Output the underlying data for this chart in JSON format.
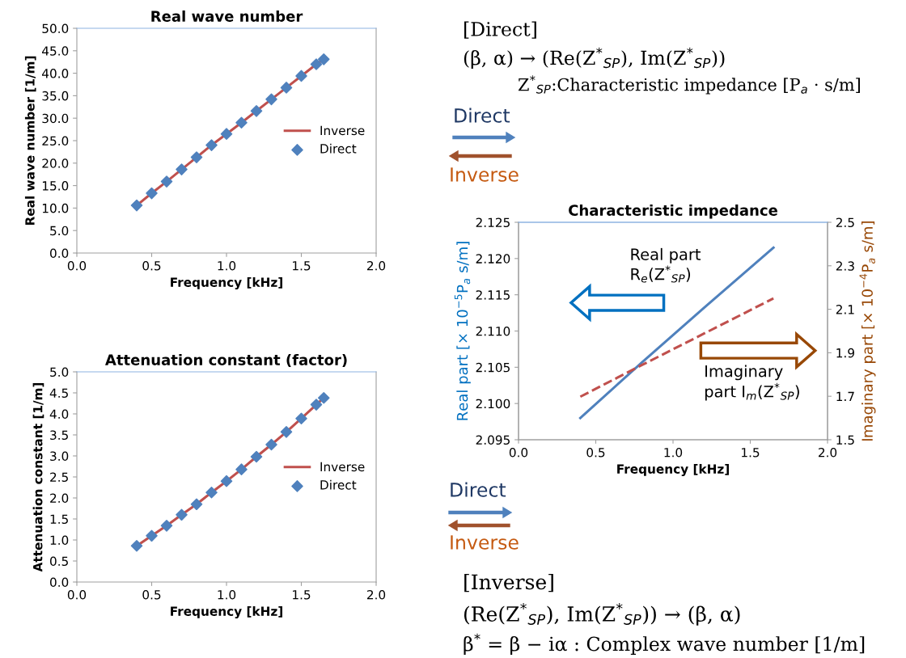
{
  "chart_data": [
    {
      "type": "line",
      "title": "Real wave number",
      "xlabel": "Frequency [kHz]",
      "ylabel": "Real wave number [1/m]",
      "xlim": [
        0.0,
        2.0
      ],
      "xticks": [
        {
          "value": 0,
          "label": "0.0"
        },
        {
          "value": 0.5,
          "label": "0.5"
        },
        {
          "value": 1,
          "label": "1.0"
        },
        {
          "value": 1.5,
          "label": "1.5"
        },
        {
          "value": 2,
          "label": "2.0"
        }
      ],
      "ylim": [
        0.0,
        50.0
      ],
      "yticks": [
        {
          "value": 0,
          "label": "0.0"
        },
        {
          "value": 5,
          "label": "5.0"
        },
        {
          "value": 10,
          "label": "10.0"
        },
        {
          "value": 15,
          "label": "15.0"
        },
        {
          "value": 20,
          "label": "20.0"
        },
        {
          "value": 25,
          "label": "25.0"
        },
        {
          "value": 30,
          "label": "30.0"
        },
        {
          "value": 35,
          "label": "35.0"
        },
        {
          "value": 40,
          "label": "40.0"
        },
        {
          "value": 45,
          "label": "45.0"
        },
        {
          "value": 50,
          "label": "50.0"
        }
      ],
      "legend": "center right",
      "x": [
        0.4,
        0.5,
        0.6,
        0.7,
        0.8,
        0.9,
        1.0,
        1.1,
        1.2,
        1.3,
        1.4,
        1.5,
        1.6,
        1.65
      ],
      "series": [
        {
          "name": "Inverse",
          "type": "line",
          "color": "#c0504d",
          "values": [
            10.6,
            13.3,
            15.9,
            18.6,
            21.3,
            24.0,
            26.5,
            29.0,
            31.6,
            34.2,
            36.8,
            39.4,
            42.0,
            43.1
          ]
        },
        {
          "name": "Direct",
          "type": "scatter",
          "marker": "diamond",
          "color": "#4f81bd",
          "values": [
            10.6,
            13.3,
            15.9,
            18.6,
            21.3,
            24.0,
            26.5,
            29.0,
            31.6,
            34.2,
            36.8,
            39.4,
            42.0,
            43.1
          ]
        }
      ]
    },
    {
      "type": "line",
      "title": "Attenuation constant (factor)",
      "xlabel": "Frequency [kHz]",
      "ylabel": "Attenuation constant [1/m]",
      "xlim": [
        0.0,
        2.0
      ],
      "xticks": [
        {
          "value": 0,
          "label": "0.0"
        },
        {
          "value": 0.5,
          "label": "0.5"
        },
        {
          "value": 1,
          "label": "1.0"
        },
        {
          "value": 1.5,
          "label": "1.5"
        },
        {
          "value": 2,
          "label": "2.0"
        }
      ],
      "ylim": [
        0.0,
        5.0
      ],
      "yticks": [
        {
          "value": 0,
          "label": "0.0"
        },
        0.5,
        {
          "value": 1,
          "label": "1.0"
        },
        1.5,
        {
          "value": 2,
          "label": "2.0"
        },
        2.5,
        {
          "value": 3,
          "label": "3.0"
        },
        3.5,
        {
          "value": 4,
          "label": "4.0"
        },
        4.5,
        {
          "value": 5,
          "label": "5.0"
        }
      ],
      "legend": "center right",
      "x": [
        0.4,
        0.5,
        0.6,
        0.7,
        0.8,
        0.9,
        1.0,
        1.1,
        1.2,
        1.3,
        1.4,
        1.5,
        1.6,
        1.65
      ],
      "series": [
        {
          "name": "Inverse",
          "type": "line",
          "color": "#c0504d",
          "values": [
            0.86,
            1.1,
            1.34,
            1.6,
            1.85,
            2.13,
            2.4,
            2.68,
            2.98,
            3.27,
            3.57,
            3.89,
            4.22,
            4.38
          ]
        },
        {
          "name": "Direct",
          "type": "scatter",
          "marker": "diamond",
          "color": "#4f81bd",
          "values": [
            0.86,
            1.1,
            1.34,
            1.6,
            1.85,
            2.13,
            2.4,
            2.68,
            2.98,
            3.27,
            3.57,
            3.89,
            4.22,
            4.38
          ]
        }
      ]
    },
    {
      "type": "line",
      "title": "Characteristic impedance",
      "xlabel": "Frequency [kHz]",
      "ylabel": "Real part [× 10$^{−5}$P$_{a}$ s/m]",
      "y2label": "Imaginary part [× 10$^{−4}$P$_{a}$ s/m]",
      "xlim": [
        0.0,
        2.0
      ],
      "xticks": [
        {
          "value": 0,
          "label": "0.0"
        },
        {
          "value": 0.5,
          "label": "0.5"
        },
        {
          "value": 1,
          "label": "1.0"
        },
        {
          "value": 1.5,
          "label": "1.5"
        },
        {
          "value": 2,
          "label": "2.0"
        }
      ],
      "ylim": [
        2.095,
        2.125
      ],
      "yticks": [
        {
          "value": 2.095,
          "label": "2.095"
        },
        {
          "value": 2.1,
          "label": "2.100"
        },
        {
          "value": 2.105,
          "label": "2.105"
        },
        {
          "value": 2.11,
          "label": "2.110"
        },
        {
          "value": 2.115,
          "label": "2.115"
        },
        {
          "value": 2.12,
          "label": "2.120"
        },
        {
          "value": 2.125,
          "label": "2.125"
        }
      ],
      "y2lim": [
        1.5,
        2.5
      ],
      "y2ticks": [
        1.5,
        1.7,
        1.9,
        2.1,
        2.3,
        2.5
      ],
      "series": [
        {
          "type": "line",
          "color": "#4f81bd",
          "x": [
            0.4,
            0.8,
            1.2,
            1.65
          ],
          "values": [
            2.098,
            2.1057,
            2.1132,
            2.1215
          ]
        },
        {
          "type": "line",
          "axis": "y2",
          "line_style": "dashed",
          "color": "#c0504d",
          "x": [
            0.4,
            0.8,
            1.2,
            1.65
          ],
          "values": [
            1.698,
            1.844,
            1.988,
            2.15
          ]
        }
      ],
      "annotations": [
        "Real part\nR$_{e}$(Z$^{*}$$_{SP}$)",
        "Imaginary\npart I$_{m}$(Z$^{*}$$_{SP}$)"
      ]
    },
    {
      "type": "other",
      "annotations": [
        "[Direct]",
        "(β, α) → (Re(Z$^{*}$$_{SP}$), Im(Z$^{*}$$_{SP}$))",
        "Z$^{*}$$_{SP}$:Characteristic impedance [P$_{a}$ · s/m]",
        "Direct",
        "Inverse",
        "Direct",
        "Inverse",
        "[Inverse]",
        "(Re(Z$^{*}$$_{SP}$), Im(Z$^{*}$$_{SP}$)) → (β, α)",
        "β$^{*}$ = β − iα : Complex wave number [1/m]"
      ]
    }
  ]
}
